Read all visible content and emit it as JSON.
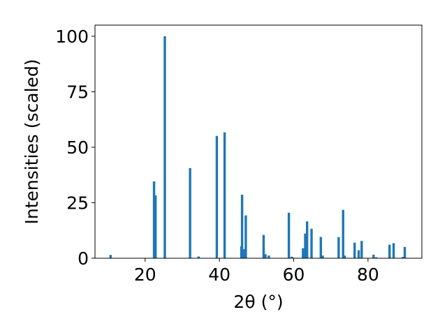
{
  "chart_data": {
    "type": "bar",
    "xlabel": "2θ (°)",
    "ylabel": "Intensities (scaled)",
    "xlim": [
      6.5,
      94.5
    ],
    "ylim": [
      0,
      105
    ],
    "xticks": [
      20,
      40,
      60,
      80
    ],
    "yticks": [
      0,
      25,
      50,
      75,
      100
    ],
    "bar_color": "#1f77b4",
    "grid": false,
    "x": [
      10.7,
      22.4,
      22.8,
      25.3,
      32.1,
      34.4,
      39.3,
      41.4,
      45.9,
      46.1,
      46.5,
      47.1,
      51.9,
      52.4,
      53.3,
      58.7,
      59.5,
      62.5,
      63.1,
      63.6,
      64.8,
      67.3,
      67.8,
      72.1,
      73.3,
      73.7,
      76.4,
      77.5,
      78.3,
      81.5,
      82.2,
      85.8,
      86.9,
      89.4,
      89.9
    ],
    "values": [
      1.5,
      34.6,
      28.3,
      100,
      40.6,
      0.8,
      55.1,
      56.7,
      5.4,
      28.6,
      4.1,
      19.3,
      10.5,
      1.8,
      1.2,
      20.5,
      0.7,
      4.5,
      11.1,
      16.6,
      13.3,
      9.6,
      1.2,
      9.5,
      21.8,
      1.2,
      7.0,
      3.6,
      7.8,
      1.6,
      0.4,
      6.1,
      6.8,
      0.6,
      5.1
    ]
  }
}
